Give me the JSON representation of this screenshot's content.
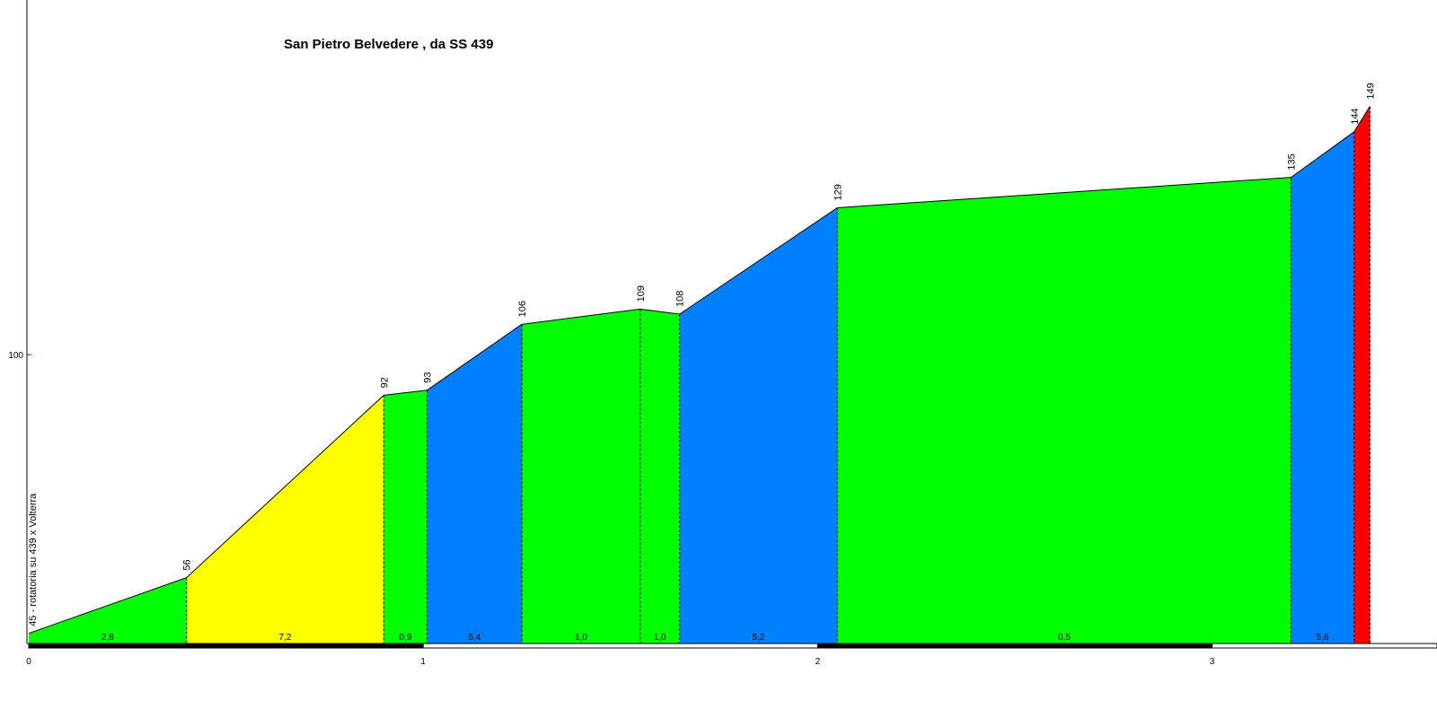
{
  "chart_data": {
    "type": "area",
    "title": "San Pietro Belvedere , da SS 439",
    "xlabel": "",
    "ylabel": "",
    "xlim": [
      0,
      3.57
    ],
    "ylim": [
      43,
      170
    ],
    "x_ticks": [
      "0",
      "1",
      "2",
      "3"
    ],
    "y_ticks": [
      "100"
    ],
    "start_label": "45 - rotatoria su 439 x Volterra",
    "points": [
      {
        "x": 0.0,
        "y": 45
      },
      {
        "x": 0.4,
        "y": 56
      },
      {
        "x": 0.9,
        "y": 92
      },
      {
        "x": 1.01,
        "y": 93
      },
      {
        "x": 1.25,
        "y": 106
      },
      {
        "x": 1.55,
        "y": 109
      },
      {
        "x": 1.65,
        "y": 108
      },
      {
        "x": 2.05,
        "y": 129
      },
      {
        "x": 3.2,
        "y": 135
      },
      {
        "x": 3.36,
        "y": 144
      },
      {
        "x": 3.4,
        "y": 149
      }
    ],
    "point_labels": [
      "",
      "56",
      "92",
      "93",
      "106",
      "109",
      "108",
      "129",
      "135",
      "144",
      "149"
    ],
    "segments": [
      {
        "gradient": "2,8",
        "color": "#00ff00"
      },
      {
        "gradient": "7,2",
        "color": "#ffff00"
      },
      {
        "gradient": "0,9",
        "color": "#00ff00"
      },
      {
        "gradient": "5,4",
        "color": "#0080ff"
      },
      {
        "gradient": "1,0",
        "color": "#00ff00"
      },
      {
        "gradient": "1,0",
        "color": "#00ff00"
      },
      {
        "gradient": "5,2",
        "color": "#0080ff"
      },
      {
        "gradient": "0,5",
        "color": "#00ff00"
      },
      {
        "gradient": "5,6",
        "color": "#0080ff"
      },
      {
        "gradient": "",
        "color": "#ff0000"
      }
    ],
    "grid": false,
    "colors": {
      "axis": "#000000",
      "tick": "#c00000"
    }
  }
}
